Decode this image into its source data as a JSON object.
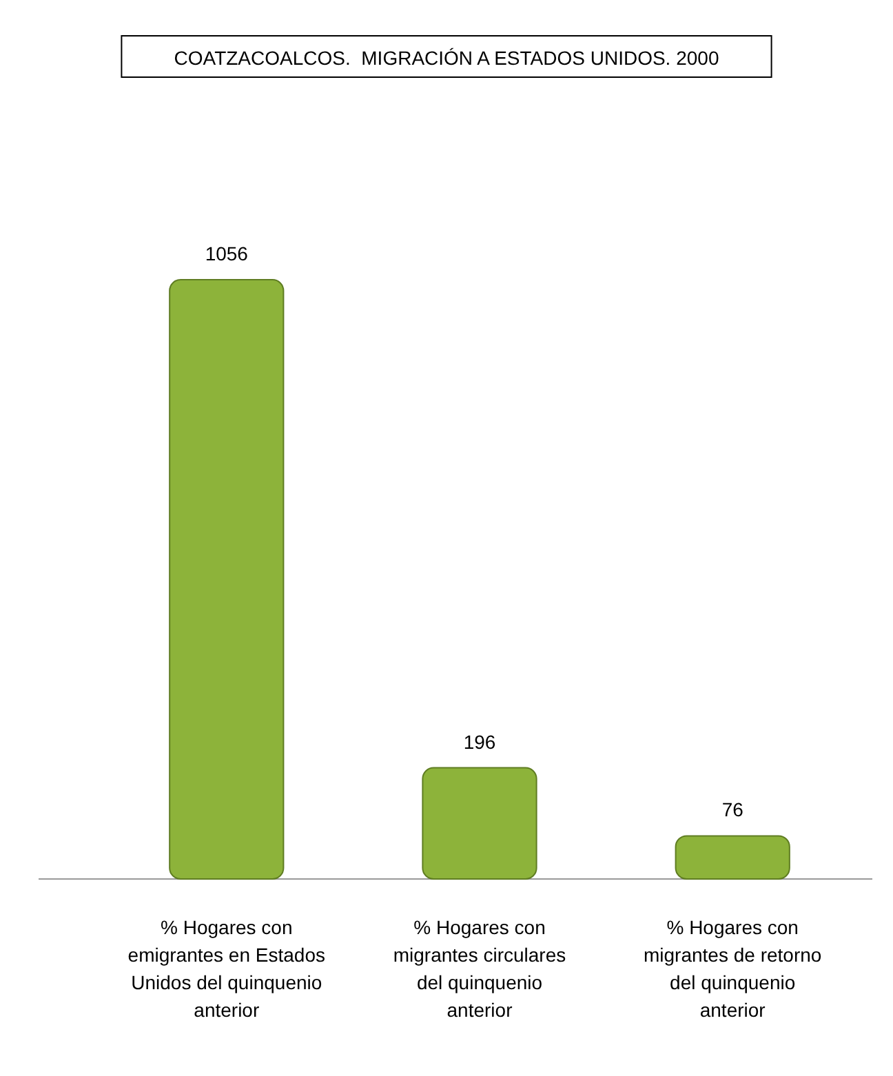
{
  "chart_data": {
    "type": "bar",
    "title": "COATZACOALCOS.  MIGRACIÓN A ESTADOS UNIDOS. 2000",
    "categories": [
      "% Hogares con emigrantes en Estados Unidos del quinquenio anterior",
      "% Hogares con migrantes circulares del quinquenio anterior",
      "% Hogares con migrantes de retorno del quinquenio anterior"
    ],
    "values": [
      1056,
      196,
      76
    ],
    "color": "#8db33a",
    "data_labels": true
  }
}
